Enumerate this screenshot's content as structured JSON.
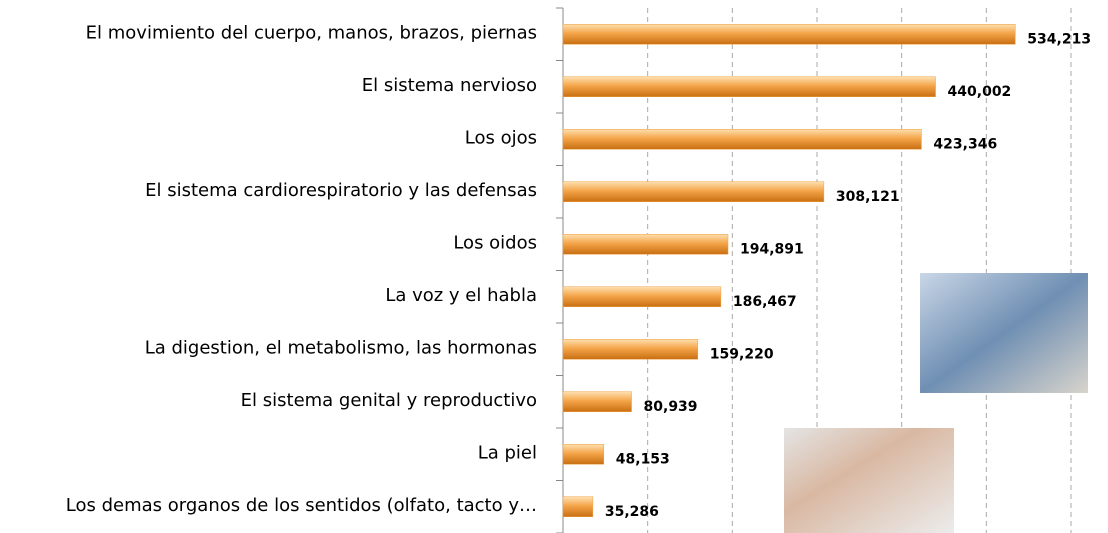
{
  "chart_data": {
    "type": "hbar",
    "categories": [
      "El movimiento del cuerpo, manos, brazos, piernas",
      "El sistema nervioso",
      "Los ojos",
      "El sistema cardiorespiratorio y las defensas",
      "Los oidos",
      "La voz y el habla",
      "La digestion, el metabolismo, las hormonas",
      "El sistema genital y reproductivo",
      "La piel",
      "Los demas organos de los sentidos (olfato, tacto y…"
    ],
    "values": [
      534213,
      440002,
      423346,
      308121,
      194891,
      186467,
      159220,
      80939,
      48153,
      35286
    ],
    "value_labels": [
      "534,213",
      "440,002",
      "423,346",
      "308,121",
      "194,891",
      "186,467",
      "159,220",
      "80,939",
      "48,153",
      "35,286"
    ],
    "color": "#f0a040",
    "xlim": [
      0,
      600000
    ],
    "xticks": [
      0,
      100000,
      200000,
      300000,
      400000,
      500000,
      600000
    ],
    "grid": true
  }
}
